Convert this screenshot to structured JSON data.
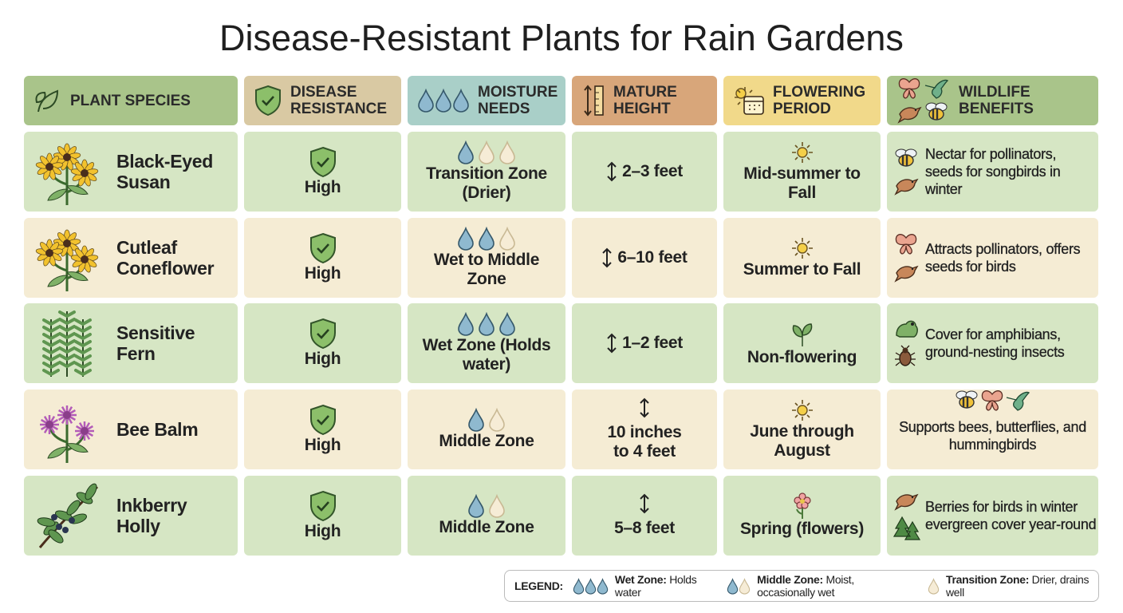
{
  "title": "Disease-Resistant Plants for Rain Gardens",
  "table": {
    "headers": [
      "PLANT SPECIES",
      "DISEASE RESISTANCE",
      "MOISTURE NEEDS",
      "MATURE HEIGHT",
      "FLOWERING PERIOD",
      "WILDLIFE BENEFITS"
    ],
    "rows": [
      [
        "Black-Eyed Susan",
        "High",
        "Transition Zone (Drier)",
        "2–3 feet",
        "Mid-summer to Fall",
        "Nectar for pollinators, seeds for songbirds in winter"
      ],
      [
        "Cutleaf Coneflower",
        "High",
        "Wet to Middle Zone",
        "6–10 feet",
        "Summer to Fall",
        "Attracts pollinators, offers seeds for birds"
      ],
      [
        "Sensitive Fern",
        "High",
        "Wet Zone (Holds water)",
        "1–2 feet",
        "Non-flowering",
        "Cover for amphibians, ground-nesting insects"
      ],
      [
        "Bee Balm",
        "High",
        "Middle Zone",
        "10 inches to 4 feet",
        "June through August",
        "Supports bees, butterflies, and hummingbirds"
      ],
      [
        "Inkberry Holly",
        "High",
        "Middle Zone",
        "5–8 feet",
        "Spring (flowers)",
        "Berries for birds in winter evergreen cover year-round"
      ]
    ]
  },
  "legend": {
    "label": "LEGEND:",
    "items": [
      {
        "term": "Wet Zone:",
        "desc": "Holds water"
      },
      {
        "term": "Middle Zone:",
        "desc": "Moist, occasionally wet"
      },
      {
        "term": "Transition Zone:",
        "desc": "Drier, drains well"
      }
    ]
  }
}
